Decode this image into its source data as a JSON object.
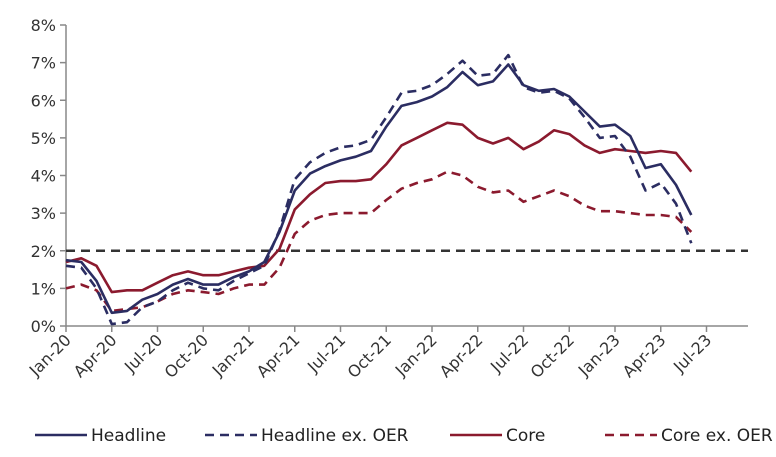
{
  "chart_data": {
    "type": "line",
    "title": "",
    "xlabel": "",
    "ylabel": "",
    "ylim": [
      0,
      8
    ],
    "y_ticks": [
      "0%",
      "1%",
      "2%",
      "3%",
      "4%",
      "5%",
      "6%",
      "7%",
      "8%"
    ],
    "x_ticks": [
      "Jan-20",
      "Apr-20",
      "Jul-20",
      "Oct-20",
      "Jan-21",
      "Apr-21",
      "Jul-21",
      "Oct-21",
      "Jan-22",
      "Apr-22",
      "Jul-22",
      "Oct-22",
      "Jan-23",
      "Apr-23",
      "Jul-23"
    ],
    "x": [
      "Jan-20",
      "Feb-20",
      "Mar-20",
      "Apr-20",
      "May-20",
      "Jun-20",
      "Jul-20",
      "Aug-20",
      "Sep-20",
      "Oct-20",
      "Nov-20",
      "Dec-20",
      "Jan-21",
      "Feb-21",
      "Mar-21",
      "Apr-21",
      "May-21",
      "Jun-21",
      "Jul-21",
      "Aug-21",
      "Sep-21",
      "Oct-21",
      "Nov-21",
      "Dec-21",
      "Jan-22",
      "Feb-22",
      "Mar-22",
      "Apr-22",
      "May-22",
      "Jun-22",
      "Jul-22",
      "Aug-22",
      "Sep-22",
      "Oct-22",
      "Nov-22",
      "Dec-22",
      "Jan-23",
      "Feb-23",
      "Mar-23",
      "Apr-23",
      "May-23",
      "Jun-23"
    ],
    "grid": false,
    "legend_position": "bottom",
    "reference_line": {
      "value": 2.0,
      "style": "dashed",
      "color": "#333333"
    },
    "series": [
      {
        "name": "Headline",
        "color": "#2b2d62",
        "dash": "solid",
        "values": [
          1.75,
          1.7,
          1.2,
          0.35,
          0.4,
          0.7,
          0.85,
          1.1,
          1.25,
          1.1,
          1.1,
          1.3,
          1.45,
          1.7,
          2.5,
          3.6,
          4.05,
          4.25,
          4.4,
          4.5,
          4.65,
          5.3,
          5.85,
          5.95,
          6.1,
          6.35,
          6.75,
          6.4,
          6.5,
          6.95,
          6.4,
          6.25,
          6.3,
          6.1,
          5.7,
          5.3,
          5.35,
          5.05,
          4.2,
          4.3,
          3.75,
          2.95
        ]
      },
      {
        "name": "Headline ex. OER",
        "color": "#2b2d62",
        "dash": "dashed",
        "values": [
          1.6,
          1.55,
          1.0,
          0.05,
          0.1,
          0.5,
          0.65,
          0.95,
          1.15,
          1.0,
          0.95,
          1.2,
          1.4,
          1.6,
          2.55,
          3.9,
          4.35,
          4.6,
          4.75,
          4.8,
          4.95,
          5.55,
          6.2,
          6.25,
          6.4,
          6.7,
          7.05,
          6.65,
          6.7,
          7.2,
          6.35,
          6.2,
          6.25,
          6.05,
          5.55,
          5.0,
          5.05,
          4.5,
          3.6,
          3.8,
          3.25,
          2.2
        ]
      },
      {
        "name": "Core",
        "color": "#8b1a2e",
        "dash": "solid",
        "values": [
          1.7,
          1.8,
          1.6,
          0.9,
          0.95,
          0.95,
          1.15,
          1.35,
          1.45,
          1.35,
          1.35,
          1.45,
          1.55,
          1.6,
          2.05,
          3.1,
          3.5,
          3.8,
          3.85,
          3.85,
          3.9,
          4.3,
          4.8,
          5.0,
          5.2,
          5.4,
          5.35,
          5.0,
          4.85,
          5.0,
          4.7,
          4.9,
          5.2,
          5.1,
          4.8,
          4.6,
          4.7,
          4.65,
          4.6,
          4.65,
          4.6,
          4.1
        ]
      },
      {
        "name": "Core ex. OER",
        "color": "#8b1a2e",
        "dash": "dashed",
        "values": [
          1.0,
          1.1,
          0.95,
          0.4,
          0.45,
          0.5,
          0.65,
          0.85,
          0.95,
          0.9,
          0.85,
          1.0,
          1.1,
          1.1,
          1.55,
          2.45,
          2.8,
          2.95,
          3.0,
          3.0,
          3.0,
          3.35,
          3.65,
          3.8,
          3.9,
          4.1,
          4.0,
          3.7,
          3.55,
          3.6,
          3.3,
          3.45,
          3.6,
          3.45,
          3.2,
          3.05,
          3.05,
          3.0,
          2.95,
          2.95,
          2.9,
          2.5
        ]
      }
    ]
  }
}
